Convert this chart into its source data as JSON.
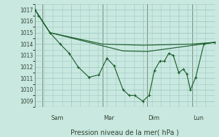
{
  "bg_color": "#c8e8e0",
  "grid_color": "#a0c8c0",
  "line_color": "#1a5c2a",
  "axis_color": "#556655",
  "title": "Pression niveau de la mer( hPa )",
  "ylim": [
    1008.5,
    1017.5
  ],
  "yticks": [
    1009,
    1010,
    1011,
    1012,
    1013,
    1014,
    1015,
    1016,
    1017
  ],
  "xlim": [
    0,
    1
  ],
  "day_labels": [
    "Sam",
    "Mar",
    "Dim",
    "Lun"
  ],
  "day_positions": [
    0.083,
    0.375,
    0.625,
    0.875
  ],
  "vline_positions": [
    0.04,
    0.375,
    0.625,
    0.875
  ],
  "line1": [
    [
      0.0,
      1017.0
    ],
    [
      0.02,
      1016.5
    ],
    [
      0.083,
      1015.0
    ],
    [
      0.14,
      1014.0
    ],
    [
      0.19,
      1013.2
    ],
    [
      0.24,
      1012.0
    ],
    [
      0.3,
      1011.1
    ],
    [
      0.355,
      1011.3
    ],
    [
      0.4,
      1012.75
    ],
    [
      0.44,
      1012.1
    ],
    [
      0.49,
      1010.0
    ],
    [
      0.525,
      1009.5
    ],
    [
      0.555,
      1009.5
    ],
    [
      0.6,
      1009.0
    ],
    [
      0.635,
      1009.5
    ],
    [
      0.665,
      1011.7
    ],
    [
      0.695,
      1012.5
    ],
    [
      0.72,
      1012.5
    ],
    [
      0.745,
      1013.2
    ],
    [
      0.77,
      1013.0
    ],
    [
      0.8,
      1011.5
    ],
    [
      0.825,
      1011.8
    ],
    [
      0.845,
      1011.4
    ],
    [
      0.865,
      1010.0
    ],
    [
      0.895,
      1011.1
    ],
    [
      0.94,
      1014.0
    ],
    [
      1.0,
      1014.15
    ]
  ],
  "line2": [
    [
      0.0,
      1017.0
    ],
    [
      0.083,
      1015.0
    ],
    [
      0.375,
      1014.0
    ],
    [
      0.6,
      1013.9
    ],
    [
      0.875,
      1014.0
    ],
    [
      1.0,
      1014.15
    ]
  ],
  "line3": [
    [
      0.0,
      1017.0
    ],
    [
      0.083,
      1015.0
    ],
    [
      0.49,
      1013.4
    ],
    [
      0.625,
      1013.35
    ],
    [
      1.0,
      1014.15
    ]
  ]
}
